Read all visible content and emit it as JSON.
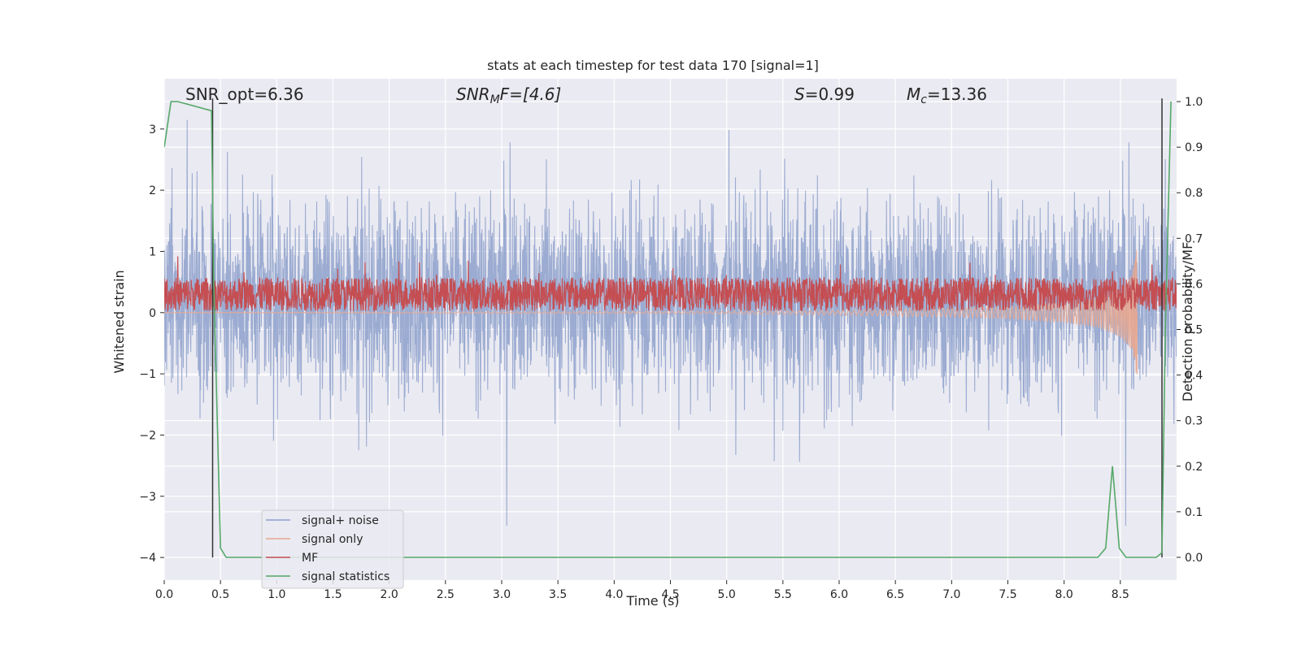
{
  "chart_data": {
    "type": "line",
    "title": "stats at each timestep for test data 170 [signal=1]",
    "xlabel": "Time (s)",
    "ylabel_left": "Whitened strain",
    "ylabel_right": "Detection probability/MF",
    "xlim": [
      0.0,
      9.0
    ],
    "ylim_left": [
      -4.37,
      3.82
    ],
    "ylim_right": [
      -0.05,
      1.05
    ],
    "xticks": [
      0.0,
      0.5,
      1.0,
      1.5,
      2.0,
      2.5,
      3.0,
      3.5,
      4.0,
      4.5,
      5.0,
      5.5,
      6.0,
      6.5,
      7.0,
      7.5,
      8.0,
      8.5
    ],
    "xtick_labels": [
      "0.0",
      "0.5",
      "1.0",
      "1.5",
      "2.0",
      "2.5",
      "3.0",
      "3.5",
      "4.0",
      "4.5",
      "5.0",
      "5.5",
      "6.0",
      "6.5",
      "7.0",
      "7.5",
      "8.0",
      "8.5"
    ],
    "yticks_left": [
      -4,
      -3,
      -2,
      -1,
      0,
      1,
      2,
      3
    ],
    "ytick_labels_left": [
      "−4",
      "−3",
      "−2",
      "−1",
      "0",
      "1",
      "2",
      "3"
    ],
    "yticks_right": [
      0.0,
      0.1,
      0.2,
      0.3,
      0.4,
      0.5,
      0.6,
      0.7,
      0.8,
      0.9,
      1.0
    ],
    "ytick_labels_right": [
      "0.0",
      "0.1",
      "0.2",
      "0.3",
      "0.4",
      "0.5",
      "0.6",
      "0.7",
      "0.8",
      "0.9",
      "1.0"
    ],
    "grid": true,
    "annotations": {
      "snr_opt": "SNR_opt=6.36",
      "snr_mf_main": "SNR",
      "snr_mf_sub": "M",
      "snr_mf_rest": "F=[4.6]",
      "s_italic": "S",
      "s_rest": "=0.99",
      "mc_main": "M",
      "mc_sub": "c",
      "mc_rest": "=13.36"
    },
    "legend": {
      "placement": "lower-left",
      "entries": [
        "signal+ noise",
        "signal only",
        "MF",
        "signal statistics"
      ]
    },
    "colors": {
      "signal_noise": "#8da0cb",
      "signal_only": "#e8a78f",
      "mf": "#c44e52",
      "signal_statistics": "#55a868",
      "vline": "#333333",
      "background": "#eaeaf2",
      "grid": "#ffffff"
    },
    "series": [
      {
        "name": "signal+ noise",
        "axis": "left",
        "description_values": "noise band approx -2.5..3.0 with spikes to -3.6 and 3.5"
      },
      {
        "name": "signal only",
        "axis": "left",
        "envelope_t": [
          0.0,
          5.0,
          6.0,
          7.0,
          7.5,
          8.0,
          8.3,
          8.5,
          8.6,
          8.65
        ],
        "envelope_amp": [
          0.0,
          0.02,
          0.04,
          0.07,
          0.1,
          0.16,
          0.24,
          0.4,
          0.6,
          1.1
        ]
      },
      {
        "name": "MF",
        "axis": "left",
        "description_values": "band approx 0.0..0.9, mostly 0.1..0.6"
      },
      {
        "name": "signal statistics",
        "axis": "right",
        "x": [
          0.0,
          0.06,
          0.12,
          0.42,
          0.44,
          0.5,
          0.55,
          0.6,
          8.3,
          8.37,
          8.43,
          8.49,
          8.55,
          8.82,
          8.87,
          8.9,
          8.95
        ],
        "y": [
          0.9,
          1.0,
          1.0,
          0.98,
          0.6,
          0.02,
          0.0,
          0.0,
          0.0,
          0.02,
          0.2,
          0.02,
          0.0,
          0.0,
          0.01,
          0.5,
          1.0
        ]
      }
    ],
    "vlines": [
      {
        "x": 0.43,
        "ymin": -4.0,
        "ymax": 3.5
      },
      {
        "x": 8.87,
        "ymin": -4.0,
        "ymax": 3.5
      }
    ]
  }
}
